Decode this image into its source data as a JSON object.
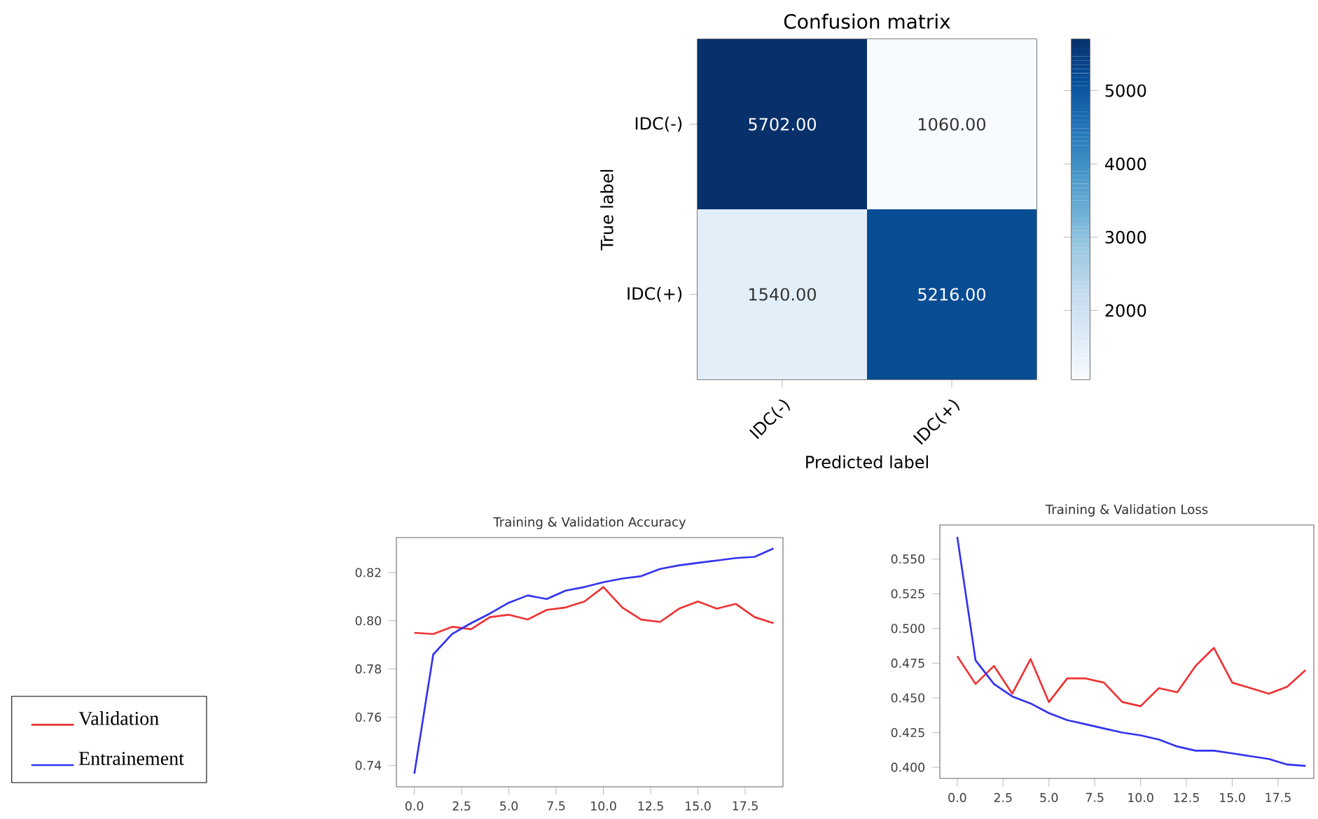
{
  "chart_data": [
    {
      "type": "heatmap",
      "title": "Confusion matrix",
      "xlabel": "Predicted label",
      "ylabel": "True label",
      "categories": [
        "IDC(-)",
        "IDC(+)"
      ],
      "y_categories": [
        "IDC(-)",
        "IDC(+)"
      ],
      "cells": [
        [
          5702,
          1060
        ],
        [
          1540,
          5216
        ]
      ],
      "cell_labels": [
        [
          "5702.00",
          "1060.00"
        ],
        [
          "1540.00",
          "5216.00"
        ]
      ],
      "clim": [
        1060,
        5702
      ],
      "cticks": [
        2000,
        3000,
        4000,
        5000
      ]
    },
    {
      "type": "line",
      "title": "Training & Validation Accuracy",
      "legend": "bottom left",
      "x": [
        0,
        1,
        2,
        3,
        4,
        5,
        6,
        7,
        8,
        9,
        10,
        11,
        12,
        13,
        14,
        15,
        16,
        17,
        18,
        19
      ],
      "series": [
        {
          "name": "Validation",
          "color": "#ee3333",
          "values": [
            0.795,
            0.7945,
            0.7975,
            0.7965,
            0.8015,
            0.8025,
            0.8005,
            0.8045,
            0.8055,
            0.808,
            0.814,
            0.8055,
            0.8005,
            0.7995,
            0.805,
            0.808,
            0.805,
            0.807,
            0.8015,
            0.799
          ]
        },
        {
          "name": "Entrainement",
          "color": "#3333ee",
          "values": [
            0.7365,
            0.786,
            0.7945,
            0.799,
            0.803,
            0.8075,
            0.8105,
            0.809,
            0.8125,
            0.814,
            0.816,
            0.8175,
            0.8185,
            0.8215,
            0.823,
            0.824,
            0.825,
            0.826,
            0.8265,
            0.83
          ]
        }
      ],
      "xlim": [
        -0.95,
        19.5
      ],
      "ylim": [
        0.7311,
        0.8345
      ],
      "xticks": [
        {
          "value": 0,
          "label": "0.0"
        },
        {
          "value": 2.5,
          "label": "2.5"
        },
        {
          "value": 5,
          "label": "5.0"
        },
        {
          "value": 7.5,
          "label": "7.5"
        },
        {
          "value": 10,
          "label": "10.0"
        },
        {
          "value": 12.5,
          "label": "12.5"
        },
        {
          "value": 15,
          "label": "15.0"
        },
        {
          "value": 17.5,
          "label": "17.5"
        }
      ],
      "yticks": [
        0.74,
        0.76,
        0.78,
        {
          "value": 0.8,
          "label": "0.80"
        },
        0.82
      ]
    },
    {
      "type": "line",
      "title": "Training & Validation Loss",
      "x": [
        0,
        1,
        2,
        3,
        4,
        5,
        6,
        7,
        8,
        9,
        10,
        11,
        12,
        13,
        14,
        15,
        16,
        17,
        18,
        19
      ],
      "series": [
        {
          "color": "#ee3333",
          "values": [
            0.48,
            0.46,
            0.473,
            0.453,
            0.478,
            0.447,
            0.464,
            0.464,
            0.461,
            0.447,
            0.444,
            0.457,
            0.454,
            0.473,
            0.486,
            0.461,
            0.457,
            0.453,
            0.458,
            0.47
          ]
        },
        {
          "color": "#3333ee",
          "values": [
            0.566,
            0.477,
            0.46,
            0.451,
            0.446,
            0.439,
            0.434,
            0.431,
            0.428,
            0.425,
            0.423,
            0.42,
            0.415,
            0.412,
            0.412,
            0.41,
            0.408,
            0.406,
            0.402,
            0.401
          ]
        }
      ],
      "xlim": [
        -0.95,
        19.45
      ],
      "ylim": [
        0.392,
        0.5745
      ],
      "xticks": [
        {
          "value": 0,
          "label": "0.0"
        },
        {
          "value": 2.5,
          "label": "2.5"
        },
        {
          "value": 5,
          "label": "5.0"
        },
        {
          "value": 7.5,
          "label": "7.5"
        },
        {
          "value": 10,
          "label": "10.0"
        },
        {
          "value": 12.5,
          "label": "12.5"
        },
        {
          "value": 15,
          "label": "15.0"
        },
        {
          "value": 17.5,
          "label": "17.5"
        }
      ],
      "yticks": [
        {
          "value": 0.4,
          "label": "0.400"
        },
        {
          "value": 0.425,
          "label": "0.425"
        },
        {
          "value": 0.45,
          "label": "0.450"
        },
        {
          "value": 0.475,
          "label": "0.475"
        },
        {
          "value": 0.5,
          "label": "0.500"
        },
        {
          "value": 0.525,
          "label": "0.525"
        },
        {
          "value": 0.55,
          "label": "0.550"
        }
      ]
    }
  ]
}
